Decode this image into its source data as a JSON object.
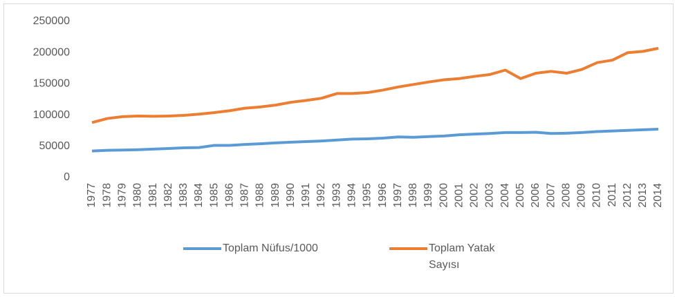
{
  "chart_data": {
    "type": "line",
    "categories": [
      "1977",
      "1978",
      "1979",
      "1980",
      "1981",
      "1982",
      "1983",
      "1984",
      "1985",
      "1986",
      "1987",
      "1988",
      "1989",
      "1990",
      "1991",
      "1992",
      "1993",
      "1994",
      "1995",
      "1996",
      "1997",
      "1998",
      "1999",
      "2000",
      "2001",
      "2002",
      "2003",
      "2004",
      "2005",
      "2006",
      "2007",
      "2008",
      "2009",
      "2010",
      "2011",
      "2012",
      "2013",
      "2014"
    ],
    "series": [
      {
        "name": "Toplam Nüfus/1000",
        "color": "#5b9bd5",
        "values": [
          42500,
          43500,
          44000,
          44500,
          45500,
          46500,
          47500,
          48000,
          51500,
          51500,
          53000,
          54000,
          55500,
          56500,
          57500,
          58500,
          60000,
          61500,
          62000,
          63000,
          65000,
          64500,
          65500,
          66500,
          68500,
          69500,
          70500,
          72000,
          72000,
          72500,
          70500,
          71000,
          72000,
          73500,
          74500,
          75500,
          76500,
          77500
        ]
      },
      {
        "name": "Toplam Yatak Sayısı",
        "color": "#ed7d31",
        "values": [
          88000,
          94500,
          97500,
          98500,
          98000,
          98500,
          99500,
          101500,
          104000,
          107000,
          111000,
          113000,
          116000,
          120500,
          123500,
          127000,
          134500,
          134500,
          136000,
          140000,
          145000,
          149000,
          153000,
          156500,
          158500,
          162000,
          165000,
          172000,
          158500,
          167000,
          170000,
          167000,
          173000,
          184000,
          188000,
          200000,
          202000,
          207000
        ]
      }
    ],
    "ylim": [
      0,
      250000
    ],
    "yticks": [
      0,
      50000,
      100000,
      150000,
      200000,
      250000
    ],
    "grid": false,
    "legend": "bottom"
  }
}
